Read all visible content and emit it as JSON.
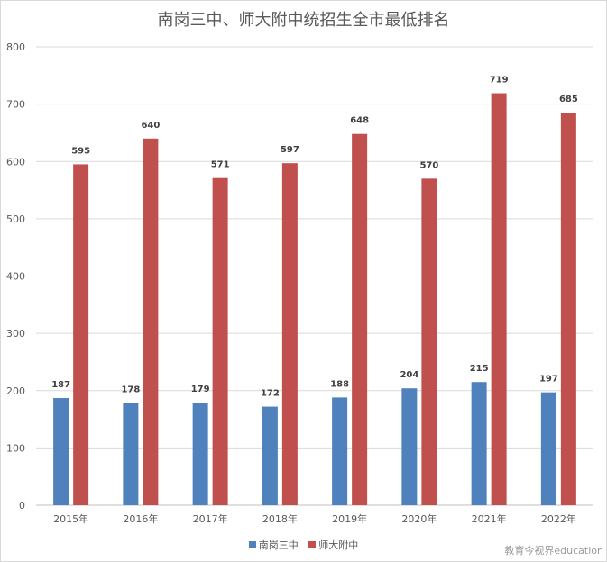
{
  "chart_data": {
    "type": "bar",
    "title": "南岗三中、师大附中统招生全市最低排名",
    "categories": [
      "2015年",
      "2016年",
      "2017年",
      "2018年",
      "2019年",
      "2020年",
      "2021年",
      "2022年"
    ],
    "series": [
      {
        "name": "南岗三中",
        "color": "#4f81bd",
        "values": [
          187,
          178,
          179,
          172,
          188,
          204,
          215,
          197
        ]
      },
      {
        "name": "师大附中",
        "color": "#c0504d",
        "values": [
          595,
          640,
          571,
          597,
          648,
          570,
          719,
          685
        ]
      }
    ],
    "ylim": [
      0,
      800
    ],
    "yticks": [
      "0",
      "100",
      "200",
      "300",
      "400",
      "500",
      "600",
      "700",
      "800"
    ],
    "grid": true,
    "legend_position": "bottom"
  },
  "watermark": "教育今视界education"
}
